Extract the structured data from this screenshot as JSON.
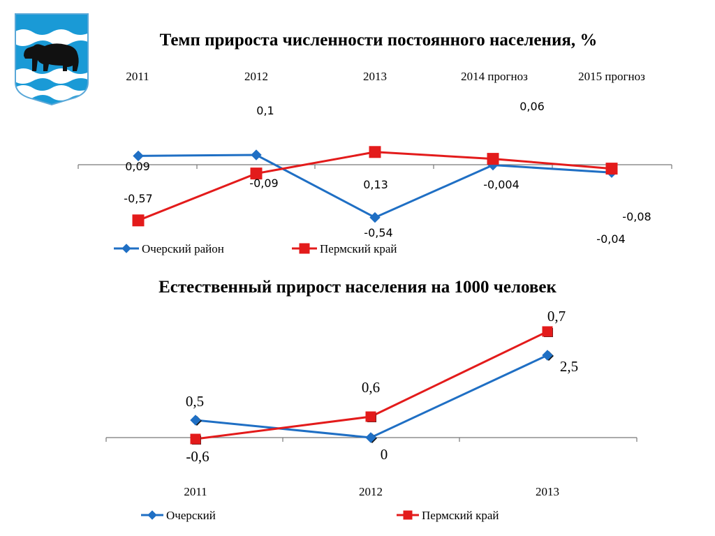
{
  "colors": {
    "blue": "#1f6fc4",
    "red": "#e31b1b",
    "emblem_blue": "#1a9ad6"
  },
  "emblem": {
    "icon": "bear-icon"
  },
  "chart_data": [
    {
      "type": "line",
      "title": "Темп прироста численности постоянного населения, %",
      "categories": [
        "2011",
        "2012",
        "2013",
        "2014 прогноз",
        "2015 прогноз"
      ],
      "xlabel": "",
      "ylabel": "",
      "grid": false,
      "legend_position": "bottom-left",
      "series": [
        {
          "name": "Очерский район",
          "color": "#1f6fc4",
          "marker": "diamond",
          "values": [
            0.09,
            0.1,
            -0.54,
            -0.004,
            -0.08
          ],
          "labels": [
            "0,09",
            "0,1",
            "-0,54",
            "-0,004",
            "-0,08"
          ]
        },
        {
          "name": "Пермский край",
          "color": "#e31b1b",
          "marker": "square",
          "values": [
            -0.57,
            -0.09,
            0.13,
            0.06,
            -0.04
          ],
          "labels": [
            "-0,57",
            "-0,09",
            "0,13",
            "0,06",
            "-0,04"
          ]
        }
      ]
    },
    {
      "type": "line",
      "title": "Естественный прирост населения на 1000 человек",
      "categories": [
        "2011",
        "2012",
        "2013"
      ],
      "xlabel": "",
      "ylabel": "",
      "grid": false,
      "legend_position": "bottom",
      "series": [
        {
          "name": "Очерский",
          "color": "#1f6fc4",
          "marker": "diamond",
          "values": [
            0.5,
            0,
            2.5
          ],
          "labels": [
            "0,5",
            "0",
            "2,5"
          ]
        },
        {
          "name": "Пермский край",
          "color": "#e31b1b",
          "marker": "square",
          "values": [
            -0.6,
            0.6,
            0.7
          ],
          "labels": [
            "-0,6",
            "0,6",
            "0,7"
          ]
        }
      ]
    }
  ]
}
